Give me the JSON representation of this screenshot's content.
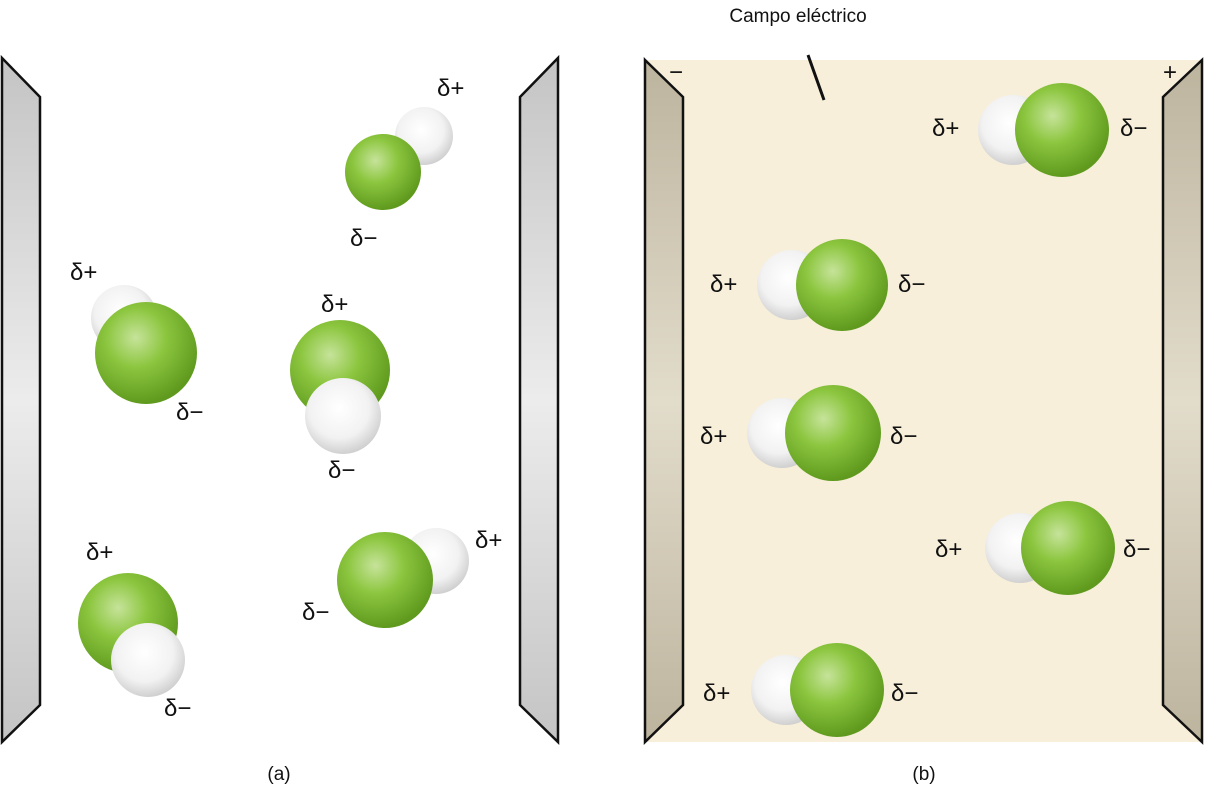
{
  "panel_a": {
    "caption": "(a)",
    "molecules": [
      {
        "h_label": "δ+",
        "cl_label": "δ−"
      },
      {
        "h_label": "δ+",
        "cl_label": "δ−"
      },
      {
        "h_label": "δ+",
        "cl_label": "δ−"
      },
      {
        "h_label": "δ+",
        "cl_label": "δ−"
      },
      {
        "h_label": "δ+",
        "cl_label": "δ−"
      }
    ]
  },
  "panel_b": {
    "caption": "(b)",
    "field_label": "Campo eléctrico",
    "negative_plate_sign": "−",
    "positive_plate_sign": "+",
    "molecules": [
      {
        "h_label": "δ+",
        "cl_label": "δ−"
      },
      {
        "h_label": "δ+",
        "cl_label": "δ−"
      },
      {
        "h_label": "δ+",
        "cl_label": "δ−"
      },
      {
        "h_label": "δ+",
        "cl_label": "δ−"
      },
      {
        "h_label": "δ+",
        "cl_label": "δ−"
      }
    ]
  },
  "colors": {
    "chlorine": "#7dbb2a",
    "hydrogen": "#ffffff",
    "plate_a": "#d4d4d4",
    "plate_b": "#c5bca6",
    "field_background": "#f7efda"
  }
}
